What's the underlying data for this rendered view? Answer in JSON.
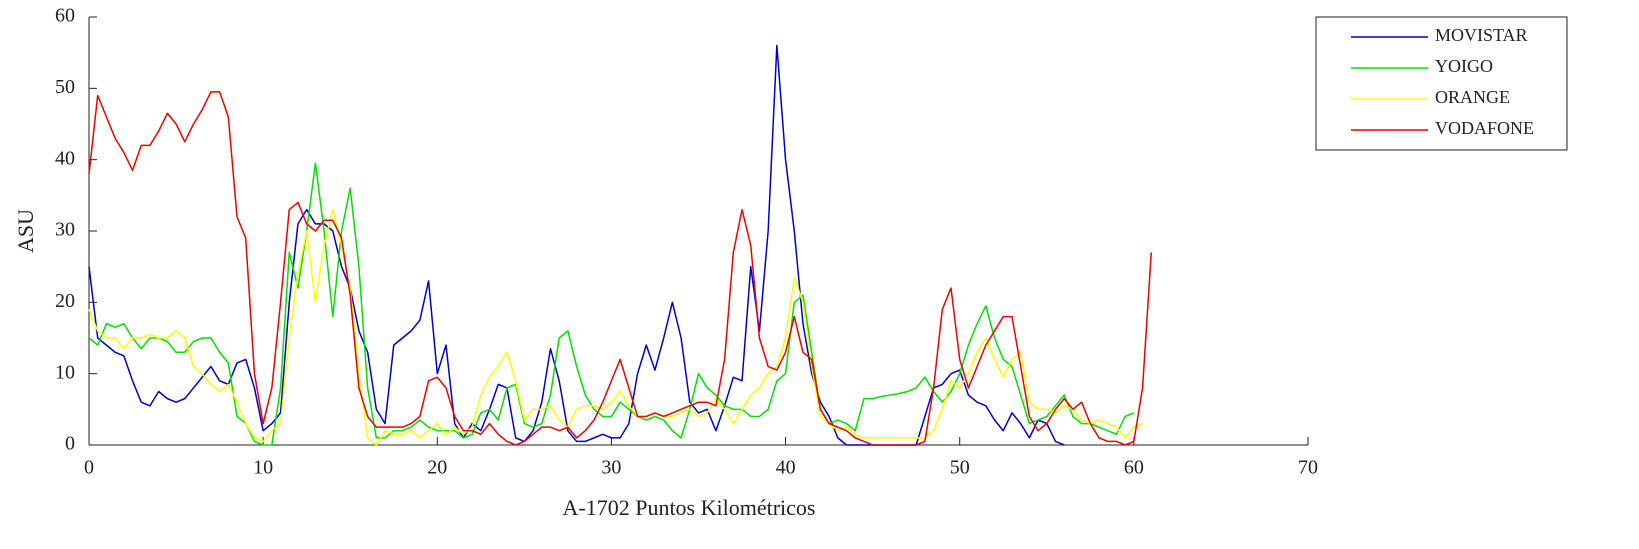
{
  "chart_data": {
    "type": "line",
    "xlabel": "A-1702 Puntos Kilométricos",
    "ylabel": "ASU",
    "xlim": [
      0,
      70
    ],
    "xticks": [
      0,
      10,
      20,
      30,
      40,
      50,
      60,
      70
    ],
    "ylim": [
      0,
      60
    ],
    "yticks": [
      0,
      10,
      20,
      30,
      40,
      50,
      60
    ],
    "legend": "outside-top-right",
    "x": [
      0,
      0.5,
      1,
      1.5,
      2,
      2.5,
      3,
      3.5,
      4,
      4.5,
      5,
      5.5,
      6,
      6.5,
      7,
      7.5,
      8,
      8.5,
      9,
      9.5,
      10,
      10.5,
      11,
      11.5,
      12,
      12.5,
      13,
      13.5,
      14,
      14.5,
      15,
      15.5,
      16,
      16.5,
      17,
      17.5,
      18,
      18.5,
      19,
      19.5,
      20,
      20.5,
      21,
      21.5,
      22,
      22.5,
      23,
      23.5,
      24,
      24.5,
      25,
      25.5,
      26,
      26.5,
      27,
      27.5,
      28,
      28.5,
      29,
      29.5,
      30,
      30.5,
      31,
      31.5,
      32,
      32.5,
      33,
      33.5,
      34,
      34.5,
      35,
      35.5,
      36,
      36.5,
      37,
      37.5,
      38,
      38.5,
      39,
      39.5,
      40,
      40.5,
      41,
      41.5,
      42,
      42.5,
      43,
      43.5,
      44,
      44.5,
      45,
      45.5,
      46,
      46.5,
      47,
      47.5,
      48,
      48.5,
      49,
      49.5,
      50,
      50.5,
      51,
      51.5,
      52,
      52.5,
      53,
      53.5,
      54,
      54.5,
      55,
      55.5,
      56,
      56.5,
      57,
      57.5,
      58,
      58.5,
      59,
      59.5,
      60,
      60.5,
      61
    ],
    "series": [
      {
        "name": "MOVISTAR",
        "color": "#0000cc",
        "values": [
          25,
          15,
          14,
          13,
          12.5,
          9,
          6,
          5.5,
          7.5,
          6.5,
          6,
          6.5,
          8,
          9.5,
          11,
          9,
          8.5,
          11.5,
          12,
          8,
          2,
          3,
          4.5,
          20,
          31,
          33,
          31,
          31,
          30,
          25,
          22,
          16,
          13,
          5,
          3,
          14,
          15,
          16,
          17.5,
          23,
          10,
          14,
          3,
          1,
          3,
          2,
          5,
          8.5,
          8,
          1,
          0.5,
          2,
          6,
          13.5,
          9,
          2,
          0.5,
          0.5,
          1,
          1.5,
          1,
          1,
          3,
          10,
          14,
          10.5,
          15,
          20,
          15,
          6,
          4.5,
          5,
          2,
          5.5,
          9.5,
          9,
          25,
          16,
          30,
          56,
          40,
          30,
          17,
          10,
          6,
          4,
          1,
          0,
          0,
          0,
          0,
          0,
          0,
          0,
          0,
          0,
          4,
          8,
          8.5,
          10,
          10.5,
          7,
          6,
          5.5,
          3.5,
          2,
          4.5,
          3,
          1,
          3.5,
          3,
          0.5,
          0,
          null,
          null,
          null,
          null,
          null,
          null,
          null,
          null,
          null,
          null
        ]
      },
      {
        "name": "YOIGO",
        "color": "#00e000",
        "values": [
          15,
          14,
          17,
          16.5,
          17,
          15,
          13.5,
          15,
          15,
          14.5,
          13,
          13,
          14.5,
          15,
          15,
          13,
          11.5,
          4,
          3,
          0.5,
          0,
          0,
          8,
          27,
          22,
          30,
          39.5,
          30,
          18,
          30,
          36,
          25,
          8,
          1,
          1,
          2,
          2,
          2.5,
          3.5,
          2.5,
          2,
          2,
          2,
          1,
          1.5,
          4.5,
          5,
          3.5,
          8,
          8.5,
          3,
          2.5,
          3,
          7,
          15,
          16,
          11,
          7,
          5,
          4,
          4,
          6,
          5,
          4,
          3.5,
          4,
          3.5,
          2,
          1,
          5,
          10,
          8,
          7,
          5.5,
          5,
          5,
          4,
          4,
          5,
          9,
          10,
          20,
          21,
          13,
          5,
          3,
          3.5,
          3,
          2,
          6.5,
          6.5,
          6.8,
          7,
          7.2,
          7.5,
          8,
          9.5,
          7.5,
          6,
          7.5,
          10,
          14,
          17,
          19.5,
          15,
          12,
          11,
          7,
          3,
          3.5,
          4,
          5.5,
          7,
          4,
          3,
          3,
          2.5,
          2,
          1.5,
          4,
          4.5,
          null,
          null
        ]
      },
      {
        "name": "ORANGE",
        "color": "#ffff00",
        "values": [
          19,
          16,
          15,
          15,
          13.5,
          15,
          15,
          15.5,
          15,
          15,
          16,
          15,
          11,
          10,
          8.5,
          7.5,
          8.5,
          6,
          3,
          1,
          0.5,
          2,
          3,
          15,
          24,
          30,
          20,
          28,
          33,
          28,
          22,
          10,
          1,
          0,
          2,
          1.5,
          1.5,
          2,
          1,
          2,
          3,
          1.5,
          2.5,
          1.5,
          2.5,
          7,
          9.5,
          11,
          13,
          9,
          3.5,
          5,
          5,
          5.5,
          3.5,
          2.5,
          5,
          5.5,
          5.5,
          5,
          6,
          7.5,
          5.5,
          4,
          4,
          4.5,
          4,
          4,
          4.5,
          5,
          4,
          4.5,
          6.5,
          5,
          3,
          5,
          7,
          8,
          10,
          11,
          15,
          23.5,
          20,
          11,
          4,
          3,
          2,
          2.5,
          1.5,
          1,
          1,
          1,
          1,
          1,
          1,
          1,
          1,
          2,
          5,
          9,
          8,
          10,
          13,
          15,
          12,
          9.5,
          12,
          13,
          6,
          5,
          5,
          4.5,
          5.5,
          5,
          3.5,
          3,
          3.5,
          3,
          2.5,
          1,
          2.5,
          3,
          null
        ]
      },
      {
        "name": "VODAFONE",
        "color": "#ee0000",
        "values": [
          38,
          49,
          46,
          43,
          41,
          38.5,
          42,
          42,
          44,
          46.5,
          45,
          42.5,
          45,
          47,
          49.5,
          49.5,
          46,
          32,
          29,
          10,
          3,
          8,
          20,
          33,
          34,
          31,
          30,
          31.5,
          31.5,
          29,
          21,
          8,
          4,
          2.5,
          2.5,
          2.5,
          2.5,
          3,
          4,
          9,
          9.5,
          8,
          4,
          2,
          2,
          1.5,
          3,
          1.5,
          0.5,
          0,
          0.5,
          1.5,
          2.5,
          2.5,
          2,
          2.5,
          1,
          2,
          3.5,
          6,
          9,
          12,
          8,
          4,
          4,
          4.5,
          4,
          4.5,
          5,
          5.5,
          6,
          6,
          5.5,
          12,
          27,
          33,
          28,
          15,
          11,
          10.5,
          13,
          18,
          13,
          12,
          5,
          3,
          2.5,
          2,
          1,
          0.5,
          0,
          0,
          0,
          0,
          0,
          0,
          0.5,
          8,
          19,
          22,
          12,
          8,
          11,
          14,
          16,
          18,
          18,
          11,
          4,
          2,
          3,
          5,
          6.5,
          5,
          6,
          3,
          1,
          0.5,
          0.5,
          0,
          0.5,
          8,
          27
        ]
      }
    ]
  }
}
